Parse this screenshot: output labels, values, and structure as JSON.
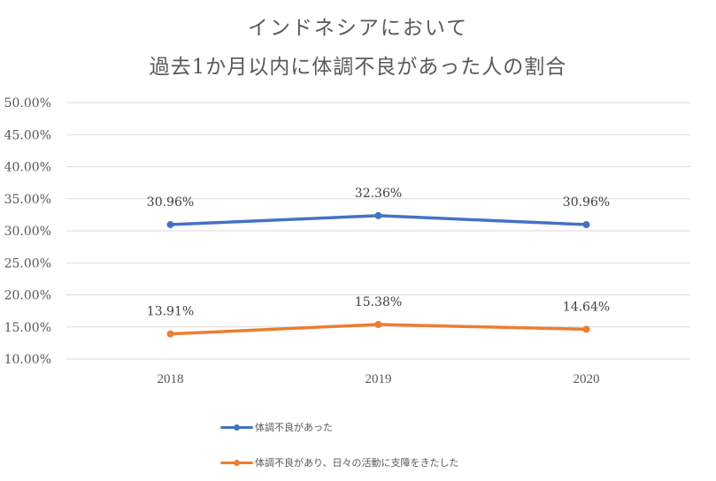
{
  "chart_data": {
    "type": "line",
    "title": [
      "インドネシアにおいて",
      "過去1か月以内に体調不良があった人の割合"
    ],
    "xlabel": "",
    "ylabel": "",
    "categories": [
      "2018",
      "2019",
      "2020"
    ],
    "ylim": [
      0.1,
      0.5
    ],
    "yticks": [
      0.5,
      0.45,
      0.4,
      0.35,
      0.3,
      0.25,
      0.2,
      0.15,
      0.1
    ],
    "ytick_labels": [
      "50.00%",
      "45.00%",
      "40.00%",
      "35.00%",
      "30.00%",
      "25.00%",
      "20.00%",
      "15.00%",
      "10.00%"
    ],
    "grid": true,
    "legend_position": "bottom",
    "series": [
      {
        "name": "体調不良があった",
        "color": "#4472C4",
        "values": [
          0.3096,
          0.3236,
          0.3096
        ],
        "labels": [
          "30.96%",
          "32.36%",
          "30.96%"
        ]
      },
      {
        "name": "体調不良があり、日々の活動に支障をきたした",
        "color": "#ED7D31",
        "values": [
          0.1391,
          0.1538,
          0.1464
        ],
        "labels": [
          "13.91%",
          "15.38%",
          "14.64%"
        ]
      }
    ]
  }
}
